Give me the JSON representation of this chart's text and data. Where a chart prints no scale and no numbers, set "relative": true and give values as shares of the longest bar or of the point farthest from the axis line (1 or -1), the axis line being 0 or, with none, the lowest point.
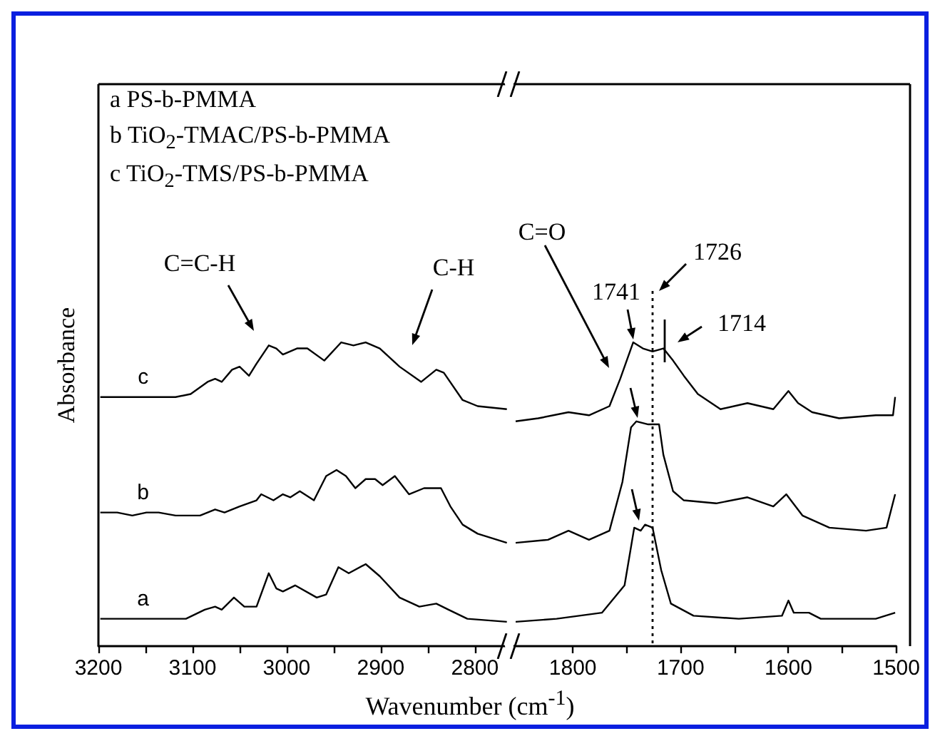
{
  "chart_data": [
    {
      "type": "line",
      "relative": true,
      "xlabel": "Wavenumber (cm$^{-1}$)",
      "ylabel": "Absorbance",
      "xlim": [
        3200,
        2765
      ],
      "xticks": [
        3200,
        {
          "value": 3150,
          "label": null
        },
        3100,
        {
          "value": 3050,
          "label": null
        },
        3000,
        {
          "value": 2950,
          "label": null
        },
        2900,
        {
          "value": 2850,
          "label": null
        },
        2800
      ],
      "annotations": [
        "a  PS-b-PMMA",
        "b  TiO$_{2}$-TMAC/PS-b-PMMA",
        "c  TiO$_{2}$-TMS/PS-b-PMMA",
        "C=C-H",
        "C-H"
      ],
      "series": [
        {
          "name": "c",
          "color": "#000000",
          "x": [
            3198,
            3118,
            3102,
            3084,
            3076,
            3069,
            3058,
            3050,
            3040,
            3032,
            3019,
            3011,
            3004,
            2989,
            2978,
            2960,
            2942,
            2929,
            2916,
            2901,
            2880,
            2857,
            2841,
            2833,
            2813,
            2797,
            2766
          ],
          "values": [
            0.82,
            0.82,
            0.83,
            0.87,
            0.88,
            0.87,
            0.91,
            0.92,
            0.89,
            0.93,
            0.99,
            0.98,
            0.96,
            0.98,
            0.98,
            0.94,
            1.0,
            0.99,
            1.0,
            0.98,
            0.92,
            0.87,
            0.91,
            0.9,
            0.81,
            0.79,
            0.78
          ]
        },
        {
          "name": "b",
          "color": "#000000",
          "x": [
            3198,
            3180,
            3164,
            3149,
            3136,
            3118,
            3092,
            3076,
            3066,
            3050,
            3032,
            3027,
            3014,
            3004,
            2996,
            2986,
            2971,
            2958,
            2947,
            2937,
            2927,
            2916,
            2906,
            2898,
            2885,
            2870,
            2854,
            2836,
            2826,
            2813,
            2797,
            2766
          ],
          "values": [
            0.44,
            0.44,
            0.43,
            0.44,
            0.44,
            0.43,
            0.43,
            0.45,
            0.44,
            0.46,
            0.48,
            0.5,
            0.48,
            0.5,
            0.49,
            0.51,
            0.48,
            0.56,
            0.58,
            0.56,
            0.52,
            0.55,
            0.55,
            0.53,
            0.56,
            0.5,
            0.52,
            0.52,
            0.46,
            0.4,
            0.37,
            0.34
          ]
        },
        {
          "name": "a",
          "color": "#000000",
          "x": [
            3198,
            3107,
            3087,
            3076,
            3069,
            3056,
            3045,
            3032,
            3019,
            3011,
            3004,
            2991,
            2968,
            2958,
            2945,
            2934,
            2916,
            2901,
            2880,
            2859,
            2841,
            2828,
            2808,
            2766
          ],
          "values": [
            0.09,
            0.09,
            0.12,
            0.13,
            0.12,
            0.16,
            0.13,
            0.13,
            0.24,
            0.19,
            0.18,
            0.2,
            0.16,
            0.17,
            0.26,
            0.24,
            0.27,
            0.23,
            0.16,
            0.13,
            0.14,
            0.12,
            0.09,
            0.08
          ]
        }
      ]
    },
    {
      "type": "line",
      "relative": true,
      "xlim": [
        1855,
        1500
      ],
      "xticks": [
        1800,
        {
          "value": 1750,
          "label": null
        },
        1700,
        {
          "value": 1650,
          "label": null
        },
        1600,
        {
          "value": 1550,
          "label": null
        },
        1500
      ],
      "annotations": [
        "C=O",
        "1741",
        "1726",
        "1714"
      ],
      "ref_lines": [
        {
          "axis": "x",
          "value": 1726,
          "line_style": "dotted"
        }
      ],
      "series": [
        {
          "color": "#000000",
          "x": [
            1853,
            1832,
            1804,
            1785,
            1766,
            1756,
            1744,
            1735,
            1726,
            1716,
            1707,
            1697,
            1684,
            1663,
            1638,
            1614,
            1600,
            1591,
            1578,
            1553,
            1519,
            1503,
            1501
          ],
          "values": [
            0.74,
            0.75,
            0.77,
            0.76,
            0.79,
            0.88,
            1.0,
            0.98,
            0.97,
            0.98,
            0.94,
            0.89,
            0.83,
            0.78,
            0.8,
            0.78,
            0.84,
            0.8,
            0.77,
            0.75,
            0.76,
            0.76,
            0.82
          ]
        },
        {
          "color": "#000000",
          "x": [
            1853,
            1823,
            1804,
            1785,
            1766,
            1754,
            1746,
            1741,
            1730,
            1720,
            1716,
            1707,
            1697,
            1667,
            1638,
            1614,
            1602,
            1587,
            1562,
            1528,
            1509,
            1501
          ],
          "values": [
            0.34,
            0.35,
            0.38,
            0.35,
            0.38,
            0.54,
            0.72,
            0.74,
            0.73,
            0.73,
            0.63,
            0.51,
            0.48,
            0.47,
            0.49,
            0.46,
            0.5,
            0.43,
            0.39,
            0.38,
            0.39,
            0.5
          ]
        },
        {
          "color": "#000000",
          "x": [
            1853,
            1815,
            1773,
            1752,
            1743,
            1737,
            1733,
            1726,
            1718,
            1709,
            1688,
            1646,
            1606,
            1600,
            1595,
            1581,
            1570,
            1519,
            1501
          ],
          "values": [
            0.08,
            0.09,
            0.11,
            0.2,
            0.39,
            0.38,
            0.4,
            0.39,
            0.25,
            0.14,
            0.1,
            0.09,
            0.1,
            0.15,
            0.11,
            0.11,
            0.09,
            0.09,
            0.11
          ]
        }
      ]
    }
  ]
}
